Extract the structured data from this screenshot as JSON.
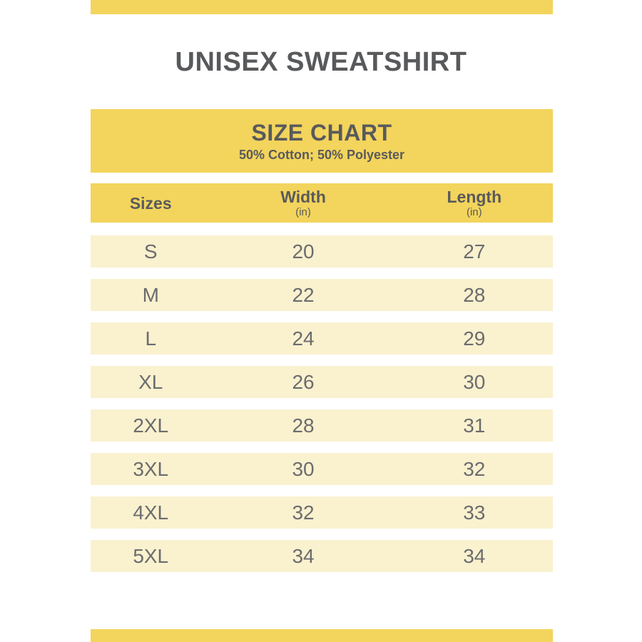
{
  "page": {
    "title": "UNISEX SWEATSHIRT"
  },
  "size_chart": {
    "title": "SIZE CHART",
    "subtitle": "50% Cotton; 50% Polyester"
  },
  "table": {
    "columns": [
      {
        "label": "Sizes",
        "unit": ""
      },
      {
        "label": "Width",
        "unit": "(in)"
      },
      {
        "label": "Length",
        "unit": "(in)"
      }
    ],
    "rows": [
      {
        "size": "S",
        "width": "20",
        "length": "27"
      },
      {
        "size": "M",
        "width": "22",
        "length": "28"
      },
      {
        "size": "L",
        "width": "24",
        "length": "29"
      },
      {
        "size": "XL",
        "width": "26",
        "length": "30"
      },
      {
        "size": "2XL",
        "width": "28",
        "length": "31"
      },
      {
        "size": "3XL",
        "width": "30",
        "length": "32"
      },
      {
        "size": "4XL",
        "width": "32",
        "length": "33"
      },
      {
        "size": "5XL",
        "width": "34",
        "length": "34"
      }
    ]
  },
  "colors": {
    "accent_yellow": "#f3d45c",
    "row_cream": "#faf1cf",
    "heading_text": "#58595b",
    "row_text": "#6b6c6e"
  },
  "chart_data": {
    "type": "table",
    "title": "SIZE CHART",
    "subtitle": "50% Cotton; 50% Polyester",
    "product": "UNISEX SWEATSHIRT",
    "columns": [
      "Sizes",
      "Width (in)",
      "Length (in)"
    ],
    "rows": [
      [
        "S",
        20,
        27
      ],
      [
        "M",
        22,
        28
      ],
      [
        "L",
        24,
        29
      ],
      [
        "XL",
        26,
        30
      ],
      [
        "2XL",
        28,
        31
      ],
      [
        "3XL",
        30,
        32
      ],
      [
        "4XL",
        32,
        33
      ],
      [
        "5XL",
        34,
        34
      ]
    ]
  }
}
